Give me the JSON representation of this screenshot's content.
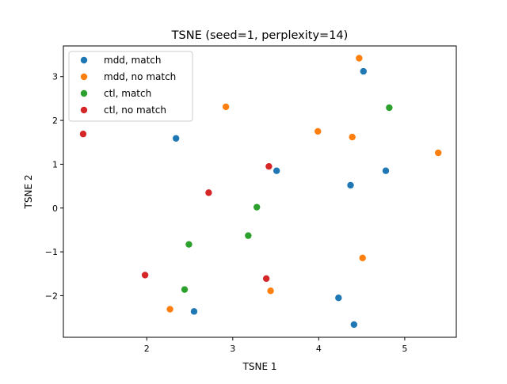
{
  "chart_data": {
    "type": "scatter",
    "title": "TSNE (seed=1, perplexity=14)",
    "xlabel": "TSNE 1",
    "ylabel": "TSNE 2",
    "xlim": [
      1.03,
      5.6
    ],
    "ylim": [
      -2.95,
      3.7
    ],
    "xticks": [
      2,
      3,
      4,
      5
    ],
    "yticks": [
      -2,
      -1,
      0,
      1,
      2,
      3
    ],
    "grid": false,
    "legend_position": "top-left",
    "series": [
      {
        "name": "mdd, match",
        "color": "#1f77b4",
        "points": [
          {
            "x": 4.52,
            "y": 3.12
          },
          {
            "x": 2.34,
            "y": 1.59
          },
          {
            "x": 3.51,
            "y": 0.85
          },
          {
            "x": 4.78,
            "y": 0.85
          },
          {
            "x": 4.37,
            "y": 0.52
          },
          {
            "x": 4.23,
            "y": -2.05
          },
          {
            "x": 2.55,
            "y": -2.36
          },
          {
            "x": 4.41,
            "y": -2.66
          }
        ]
      },
      {
        "name": "mdd, no match",
        "color": "#ff7f0e",
        "points": [
          {
            "x": 4.47,
            "y": 3.42
          },
          {
            "x": 2.92,
            "y": 2.31
          },
          {
            "x": 3.99,
            "y": 1.75
          },
          {
            "x": 4.39,
            "y": 1.62
          },
          {
            "x": 5.39,
            "y": 1.26
          },
          {
            "x": 4.51,
            "y": -1.14
          },
          {
            "x": 3.44,
            "y": -1.89
          },
          {
            "x": 2.27,
            "y": -2.31
          }
        ]
      },
      {
        "name": "ctl, match",
        "color": "#2ca02c",
        "points": [
          {
            "x": 4.82,
            "y": 2.29
          },
          {
            "x": 3.28,
            "y": 0.02
          },
          {
            "x": 3.18,
            "y": -0.63
          },
          {
            "x": 2.49,
            "y": -0.83
          },
          {
            "x": 2.44,
            "y": -1.86
          }
        ]
      },
      {
        "name": "ctl, no match",
        "color": "#d62728",
        "points": [
          {
            "x": 1.26,
            "y": 1.69
          },
          {
            "x": 3.42,
            "y": 0.95
          },
          {
            "x": 2.72,
            "y": 0.35
          },
          {
            "x": 1.98,
            "y": -1.53
          },
          {
            "x": 3.39,
            "y": -1.61
          }
        ]
      }
    ]
  }
}
